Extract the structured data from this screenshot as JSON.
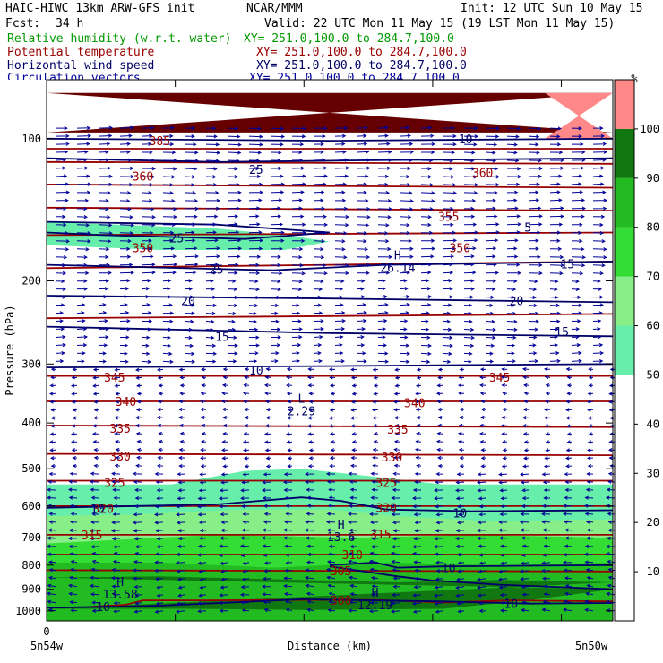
{
  "header": {
    "model": "HAIC-HIWC 13km ARW-GFS init",
    "org": "NCAR/MMM",
    "init": "Init: 12 UTC Sun 10 May 15",
    "fcst_label": "Fcst:",
    "fcst_value": "34 h",
    "valid": "Valid: 22 UTC Mon 11 May 15 (19 LST Mon 11 May 15)"
  },
  "legend": [
    {
      "name": "Relative humidity (w.r.t. water)",
      "xy": "XY= 251.0,100.0 to 284.7,100.0",
      "color": "#009900"
    },
    {
      "name": "Potential temperature",
      "xy": "XY= 251.0,100.0 to 284.7,100.0",
      "color": "#990000"
    },
    {
      "name": "Horizontal wind speed",
      "xy": "XY= 251.0,100.0 to 284.7,100.0",
      "color": "#000066"
    },
    {
      "name": "Circulation vectors",
      "xy": "XY= 251.0,100.0 to 284.7,100.0",
      "color": "#000099"
    }
  ],
  "chart_data": {
    "type": "cross-section",
    "xlabel": "Distance (km)",
    "ylabel": "Pressure (hPa)",
    "x_start_tick": "0",
    "x_left_label": "5n54w",
    "x_right_label": "5n50w",
    "y_scale": "log",
    "ylim": [
      1050,
      75
    ],
    "y_ticks": [
      100,
      200,
      300,
      400,
      500,
      600,
      700,
      800,
      900,
      1000
    ],
    "colorbar": {
      "unit": "%",
      "ticks": [
        10,
        20,
        30,
        40,
        50,
        60,
        70,
        80,
        90,
        100
      ],
      "bands": [
        {
          "from": 0,
          "to": 50,
          "color": "#ffffff"
        },
        {
          "from": 50,
          "to": 60,
          "color": "#66eeaa"
        },
        {
          "from": 60,
          "to": 70,
          "color": "#88ee88"
        },
        {
          "from": 70,
          "to": 80,
          "color": "#33dd33"
        },
        {
          "from": 80,
          "to": 90,
          "color": "#22bb22"
        },
        {
          "from": 90,
          "to": 100,
          "color": "#117711"
        },
        {
          "from": 100,
          "to": 110,
          "color": "#ff8888"
        }
      ]
    },
    "theta_labels": [
      {
        "value": "385",
        "x": 0.2,
        "p": 101
      },
      {
        "value": "360",
        "x": 0.17,
        "p": 120
      },
      {
        "value": "350",
        "x": 0.17,
        "p": 170
      },
      {
        "value": "345",
        "x": 0.12,
        "p": 320
      },
      {
        "value": "340",
        "x": 0.14,
        "p": 360
      },
      {
        "value": "335",
        "x": 0.13,
        "p": 410
      },
      {
        "value": "330",
        "x": 0.13,
        "p": 470
      },
      {
        "value": "325",
        "x": 0.12,
        "p": 535
      },
      {
        "value": "320",
        "x": 0.1,
        "p": 607
      },
      {
        "value": "315",
        "x": 0.08,
        "p": 690
      },
      {
        "value": "345",
        "x": 0.8,
        "p": 320
      },
      {
        "value": "340",
        "x": 0.65,
        "p": 362
      },
      {
        "value": "335",
        "x": 0.62,
        "p": 412
      },
      {
        "value": "330",
        "x": 0.61,
        "p": 472
      },
      {
        "value": "325",
        "x": 0.6,
        "p": 535
      },
      {
        "value": "320",
        "x": 0.6,
        "p": 604
      },
      {
        "value": "315",
        "x": 0.59,
        "p": 688
      },
      {
        "value": "310",
        "x": 0.54,
        "p": 760
      },
      {
        "value": "305",
        "x": 0.52,
        "p": 823
      },
      {
        "value": "300",
        "x": 0.52,
        "p": 950
      },
      {
        "value": "355",
        "x": 0.71,
        "p": 146
      },
      {
        "value": "350",
        "x": 0.73,
        "p": 170
      },
      {
        "value": "360",
        "x": 0.77,
        "p": 118
      }
    ],
    "wind_labels": [
      {
        "value": "10",
        "x": 0.74,
        "p": 100
      },
      {
        "value": "25",
        "x": 0.37,
        "p": 116
      },
      {
        "value": "25",
        "x": 0.23,
        "p": 162
      },
      {
        "value": "25",
        "x": 0.3,
        "p": 189
      },
      {
        "value": "20",
        "x": 0.25,
        "p": 220
      },
      {
        "value": "15",
        "x": 0.31,
        "p": 262
      },
      {
        "value": "10",
        "x": 0.37,
        "p": 309
      },
      {
        "value": "5",
        "x": 0.85,
        "p": 154
      },
      {
        "value": "15",
        "x": 0.92,
        "p": 184
      },
      {
        "value": "20",
        "x": 0.83,
        "p": 220
      },
      {
        "value": "15",
        "x": 0.91,
        "p": 256
      },
      {
        "value": "10",
        "x": 0.09,
        "p": 607
      },
      {
        "value": "10",
        "x": 0.73,
        "p": 620
      },
      {
        "value": "10",
        "x": 0.71,
        "p": 810
      },
      {
        "value": "10",
        "x": 0.1,
        "p": 980
      },
      {
        "value": "10",
        "x": 0.82,
        "p": 965
      }
    ],
    "extrema": [
      {
        "letter": "H",
        "value": "26.14",
        "x": 0.62,
        "p": 180
      },
      {
        "letter": "L",
        "value": "2.29",
        "x": 0.45,
        "p": 362
      },
      {
        "letter": "H",
        "value": "13.6",
        "x": 0.52,
        "p": 670
      },
      {
        "letter": "H",
        "value": "13.58",
        "x": 0.13,
        "p": 885
      },
      {
        "letter": "H",
        "value": "12.19",
        "x": 0.58,
        "p": 934
      }
    ]
  }
}
